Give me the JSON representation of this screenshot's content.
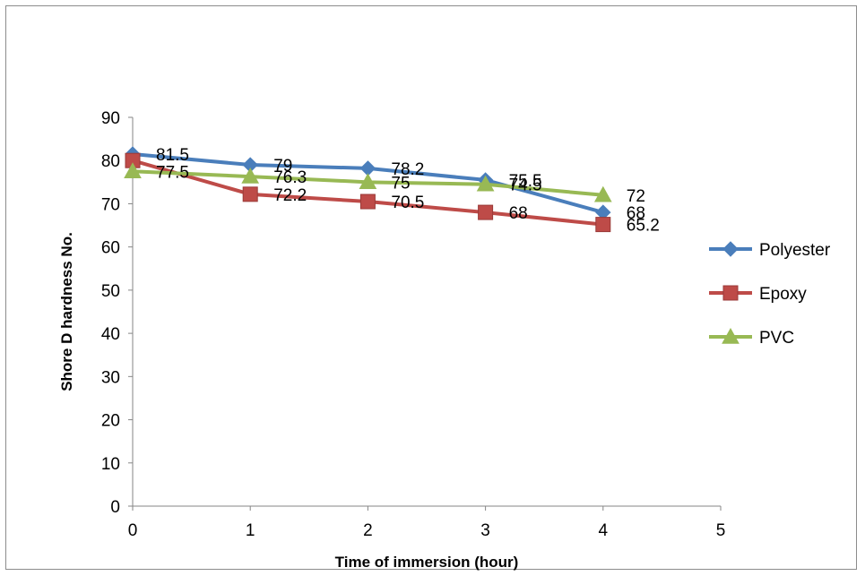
{
  "chart_data": {
    "type": "line",
    "xlabel": "Time of immersion (hour)",
    "ylabel": "Shore D hardness No.",
    "xlim": [
      0,
      5
    ],
    "ylim": [
      0,
      90
    ],
    "x_ticks": [
      0,
      1,
      2,
      3,
      4,
      5
    ],
    "y_ticks": [
      0,
      10,
      20,
      30,
      40,
      50,
      60,
      70,
      80,
      90
    ],
    "grid": false,
    "legend_position": "right",
    "x": [
      0,
      1,
      2,
      3,
      4
    ],
    "series": [
      {
        "name": "Polyester",
        "values": [
          81.5,
          79,
          78.2,
          75.5,
          68
        ],
        "labels": [
          "81.5",
          "79",
          "78.2",
          "75.5",
          "68"
        ],
        "color": "#4a7ebb",
        "marker": "diamond"
      },
      {
        "name": "Epoxy",
        "values": [
          80,
          72.2,
          70.5,
          68,
          65.2
        ],
        "labels": [
          "",
          "72.2",
          "70.5",
          "68",
          "65.2"
        ],
        "color": "#be4b48",
        "marker": "square"
      },
      {
        "name": "PVC",
        "values": [
          77.5,
          76.3,
          75,
          74.5,
          72
        ],
        "labels": [
          "77.5",
          "76.3",
          "75",
          "74.5",
          "72"
        ],
        "color": "#98b954",
        "marker": "triangle"
      }
    ]
  }
}
